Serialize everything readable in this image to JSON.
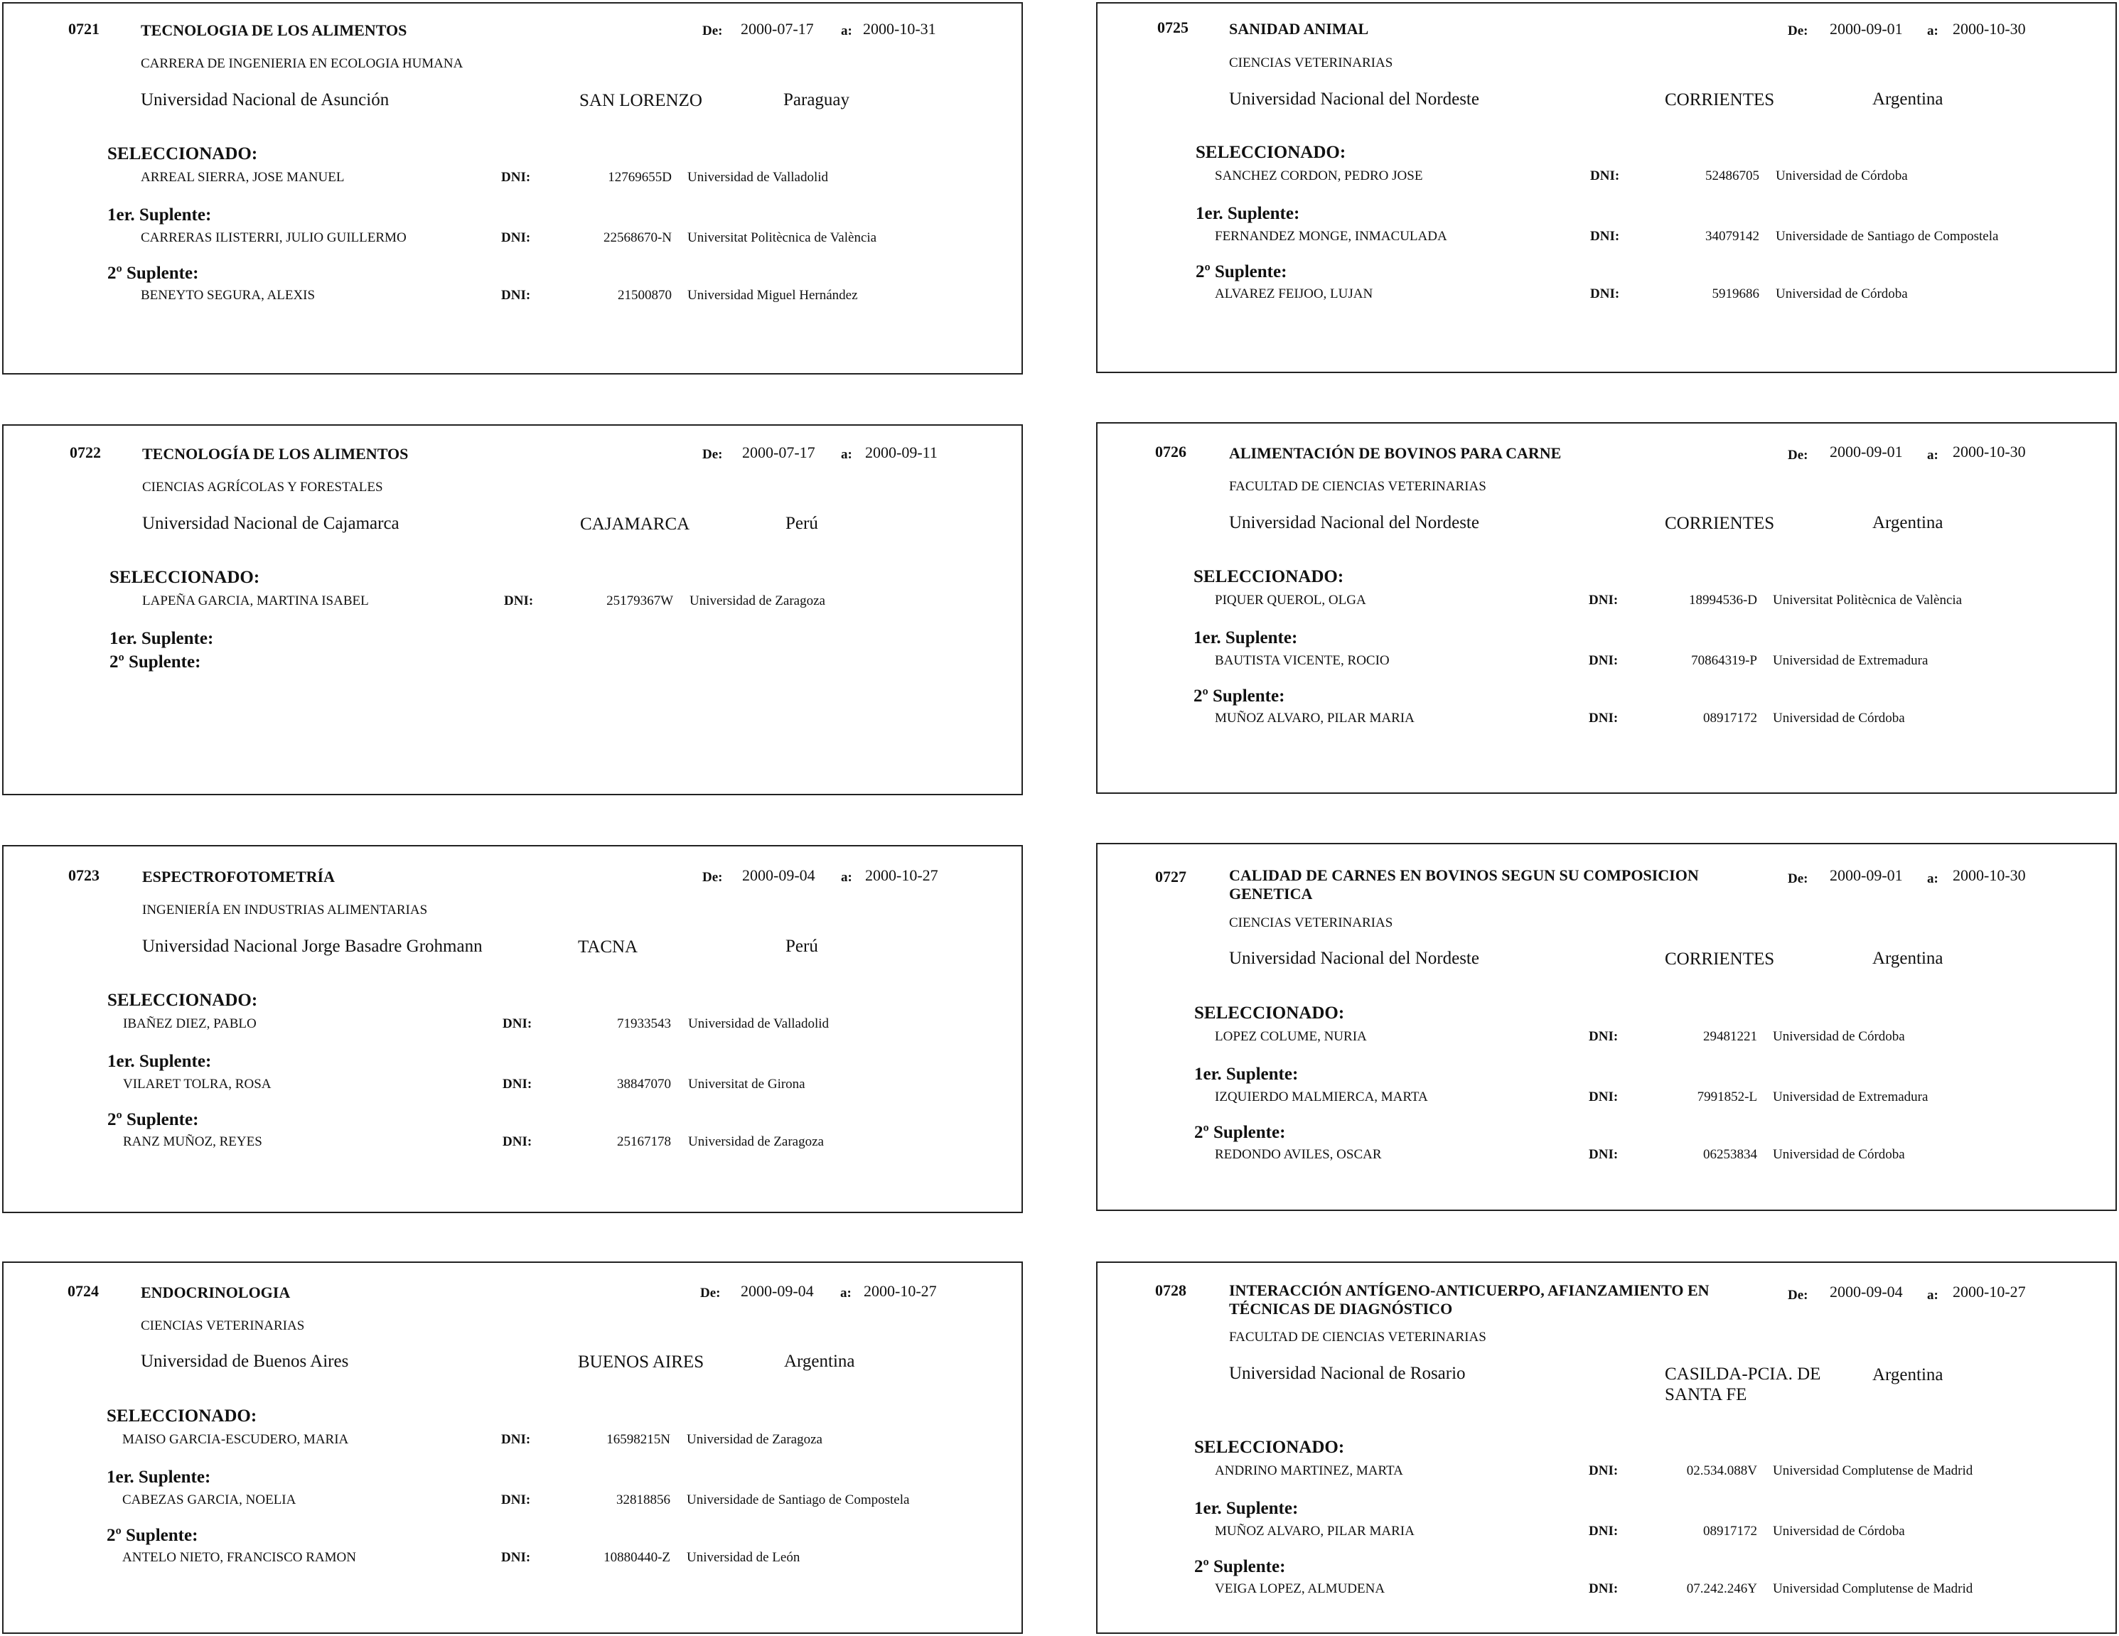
{
  "labels": {
    "from": "De:",
    "to": "a:",
    "selected": "SELECCIONADO:",
    "first_sub": "1er. Suplente:",
    "second_sub": "2º Suplente:",
    "dni": "DNI:"
  },
  "cards": [
    {
      "code": "0721",
      "title": "TECNOLOGIA DE LOS ALIMENTOS",
      "from": "2000-07-17",
      "to": "2000-10-31",
      "faculty": "CARRERA DE INGENIERIA EN ECOLOGIA HUMANA",
      "university": "Universidad Nacional de Asunción",
      "city": "SAN LORENZO",
      "country": "Paraguay",
      "selected": {
        "name": "ARREAL SIERRA, JOSE MANUEL",
        "dni": "12769655D",
        "university": "Universidad de Valladolid"
      },
      "first": {
        "name": "CARRERAS ILISTERRI, JULIO GUILLERMO",
        "dni": "22568670-N",
        "university": "Universitat Politècnica de València"
      },
      "second": {
        "name": "BENEYTO SEGURA, ALEXIS",
        "dni": "21500870",
        "university": "Universidad Miguel Hernández"
      }
    },
    {
      "code": "0722",
      "title": "TECNOLOGÍA DE LOS ALIMENTOS",
      "from": "2000-07-17",
      "to": "2000-09-11",
      "faculty": "CIENCIAS AGRÍCOLAS Y FORESTALES",
      "university": "Universidad Nacional de Cajamarca",
      "city": "CAJAMARCA",
      "country": "Perú",
      "selected": {
        "name": "LAPEÑA GARCIA, MARTINA ISABEL",
        "dni": "25179367W",
        "university": "Universidad de Zaragoza"
      }
    },
    {
      "code": "0723",
      "title": "ESPECTROFOTOMETRÍA",
      "from": "2000-09-04",
      "to": "2000-10-27",
      "faculty": "INGENIERÍA EN INDUSTRIAS ALIMENTARIAS",
      "university": "Universidad Nacional Jorge Basadre Grohmann",
      "city": "TACNA",
      "country": "Perú",
      "selected": {
        "name": "IBAÑEZ DIEZ, PABLO",
        "dni": "71933543",
        "university": "Universidad de Valladolid"
      },
      "first": {
        "name": "VILARET TOLRA, ROSA",
        "dni": "38847070",
        "university": "Universitat de Girona"
      },
      "second": {
        "name": "RANZ MUÑOZ, REYES",
        "dni": "25167178",
        "university": "Universidad de Zaragoza"
      }
    },
    {
      "code": "0724",
      "title": "ENDOCRINOLOGIA",
      "from": "2000-09-04",
      "to": "2000-10-27",
      "faculty": "CIENCIAS VETERINARIAS",
      "university": "Universidad de Buenos Aires",
      "city": "BUENOS AIRES",
      "country": "Argentina",
      "selected": {
        "name": "MAISO GARCIA-ESCUDERO, MARIA",
        "dni": "16598215N",
        "university": "Universidad de Zaragoza"
      },
      "first": {
        "name": "CABEZAS GARCIA, NOELIA",
        "dni": "32818856",
        "university": "Universidade de Santiago de Compostela"
      },
      "second": {
        "name": "ANTELO NIETO, FRANCISCO RAMON",
        "dni": "10880440-Z",
        "university": "Universidad de León"
      }
    },
    {
      "code": "0725",
      "title": "SANIDAD ANIMAL",
      "from": "2000-09-01",
      "to": "2000-10-30",
      "faculty": "CIENCIAS VETERINARIAS",
      "university": "Universidad Nacional del Nordeste",
      "city": "CORRIENTES",
      "country": "Argentina",
      "selected": {
        "name": "SANCHEZ CORDON, PEDRO JOSE",
        "dni": "52486705",
        "university": "Universidad de Córdoba"
      },
      "first": {
        "name": "FERNANDEZ MONGE, INMACULADA",
        "dni": "34079142",
        "university": "Universidade de Santiago de Compostela"
      },
      "second": {
        "name": "ALVAREZ FEIJOO, LUJAN",
        "dni": "5919686",
        "university": "Universidad de Córdoba"
      }
    },
    {
      "code": "0726",
      "title": "ALIMENTACIÓN DE BOVINOS PARA CARNE",
      "from": "2000-09-01",
      "to": "2000-10-30",
      "faculty": "FACULTAD DE CIENCIAS VETERINARIAS",
      "university": "Universidad Nacional del Nordeste",
      "city": "CORRIENTES",
      "country": "Argentina",
      "selected": {
        "name": "PIQUER QUEROL, OLGA",
        "dni": "18994536-D",
        "university": "Universitat Politècnica de València"
      },
      "first": {
        "name": "BAUTISTA VICENTE, ROCIO",
        "dni": "70864319-P",
        "university": "Universidad de Extremadura"
      },
      "second": {
        "name": "MUÑOZ ALVARO, PILAR MARIA",
        "dni": "08917172",
        "university": "Universidad de Córdoba"
      }
    },
    {
      "code": "0727",
      "title": "CALIDAD DE CARNES EN BOVINOS SEGUN SU COMPOSICION GENETICA",
      "from": "2000-09-01",
      "to": "2000-10-30",
      "faculty": "CIENCIAS VETERINARIAS",
      "university": "Universidad Nacional del Nordeste",
      "city": "CORRIENTES",
      "country": "Argentina",
      "selected": {
        "name": "LOPEZ COLUME, NURIA",
        "dni": "29481221",
        "university": "Universidad de Córdoba"
      },
      "first": {
        "name": "IZQUIERDO MALMIERCA, MARTA",
        "dni": "7991852-L",
        "university": "Universidad de Extremadura"
      },
      "second": {
        "name": "REDONDO AVILES, OSCAR",
        "dni": "06253834",
        "university": "Universidad de Córdoba"
      }
    },
    {
      "code": "0728",
      "title": "INTERACCIÓN ANTÍGENO-ANTICUERPO, AFIANZAMIENTO EN TÉCNICAS DE DIAGNÓSTICO",
      "from": "2000-09-04",
      "to": "2000-10-27",
      "faculty": "FACULTAD DE CIENCIAS VETERINARIAS",
      "university": "Universidad Nacional de Rosario",
      "city": "CASILDA-PCIA. DE SANTA FE",
      "country": "Argentina",
      "selected": {
        "name": "ANDRINO MARTINEZ, MARTA",
        "dni": "02.534.088V",
        "university": "Universidad Complutense de Madrid"
      },
      "first": {
        "name": "MUÑOZ ALVARO, PILAR MARIA",
        "dni": "08917172",
        "university": "Universidad de Córdoba"
      },
      "second": {
        "name": "VEIGA LOPEZ, ALMUDENA",
        "dni": "07.242.246Y",
        "university": "Universidad Complutense de Madrid"
      }
    }
  ]
}
